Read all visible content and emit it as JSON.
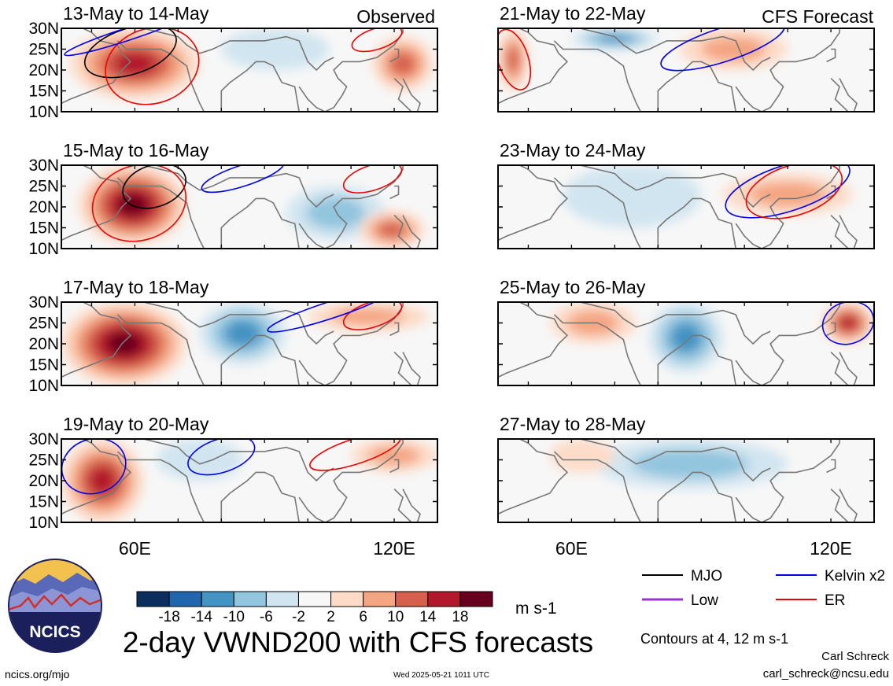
{
  "header": {
    "left_title": "Observed",
    "right_title": "CFS Forecast"
  },
  "chart_data": {
    "type": "heatmap",
    "variable": "VWND200",
    "panels": [
      {
        "column": "Observed",
        "title": "13-May to 14-May",
        "positive_areas": [
          {
            "lon_range": [
              45,
              75
            ],
            "lat_range": [
              13,
              30
            ],
            "peak": 14
          },
          {
            "lon_range": [
              115,
              129
            ],
            "lat_range": [
              15,
              28
            ],
            "peak": 10
          }
        ],
        "negative_areas": [
          {
            "lon_range": [
              80,
              105
            ],
            "lat_range": [
              20,
              30
            ],
            "peak": -4
          }
        ],
        "contours": [
          {
            "group": "MJO",
            "lon_range": [
              48,
              70
            ],
            "lat_range": [
              19,
              30
            ]
          },
          {
            "group": "ER",
            "lon_range": [
              53,
              75
            ],
            "lat_range": [
              12,
              30
            ]
          },
          {
            "group": "ER",
            "lon_range": [
              110,
              122
            ],
            "lat_range": [
              25,
              30
            ]
          },
          {
            "group": "Kelvin x2",
            "lon_range": [
              43,
              73
            ],
            "lat_range": [
              27,
              30
            ]
          }
        ]
      },
      {
        "column": "Observed",
        "title": "15-May to 16-May",
        "positive_areas": [
          {
            "lon_range": [
              47,
              72
            ],
            "lat_range": [
              11,
              30
            ],
            "peak": 18
          },
          {
            "lon_range": [
              112,
              127
            ],
            "lat_range": [
              10,
              19
            ],
            "peak": 10
          }
        ],
        "negative_areas": [
          {
            "lon_range": [
              95,
              118
            ],
            "lat_range": [
              12,
              25
            ],
            "peak": -6
          }
        ],
        "contours": [
          {
            "group": "MJO",
            "lon_range": [
              57,
              72
            ],
            "lat_range": [
              20,
              30
            ]
          },
          {
            "group": "ER",
            "lon_range": [
              50,
              72
            ],
            "lat_range": [
              12,
              30
            ]
          },
          {
            "group": "ER",
            "lon_range": [
              108,
              122
            ],
            "lat_range": [
              24,
              30
            ]
          },
          {
            "group": "Kelvin x2",
            "lon_range": [
              75,
              95
            ],
            "lat_range": [
              25,
              30
            ]
          }
        ]
      },
      {
        "column": "Observed",
        "title": "17-May to 18-May",
        "positive_areas": [
          {
            "lon_range": [
              43,
              72
            ],
            "lat_range": [
              10,
              30
            ],
            "peak": 18
          },
          {
            "lon_range": [
              100,
              128
            ],
            "lat_range": [
              23,
              30
            ],
            "peak": 6
          }
        ],
        "negative_areas": [
          {
            "lon_range": [
              75,
              95
            ],
            "lat_range": [
              15,
              30
            ],
            "peak": -10
          }
        ],
        "contours": [
          {
            "group": "ER",
            "lon_range": [
              108,
              122
            ],
            "lat_range": [
              24,
              30
            ]
          },
          {
            "group": "Kelvin x2",
            "lon_range": [
              90,
              120
            ],
            "lat_range": [
              26,
              30
            ]
          }
        ]
      },
      {
        "column": "Observed",
        "title": "19-May to 20-May",
        "positive_areas": [
          {
            "lon_range": [
              43,
              62
            ],
            "lat_range": [
              10,
              30
            ],
            "peak": 14
          },
          {
            "lon_range": [
              110,
              130
            ],
            "lat_range": [
              22,
              30
            ],
            "peak": 6
          }
        ],
        "negative_areas": [
          {
            "lon_range": [
              65,
              85
            ],
            "lat_range": [
              20,
              30
            ],
            "peak": -4
          }
        ],
        "contours": [
          {
            "group": "Kelvin x2",
            "lon_range": [
              43,
              58
            ],
            "lat_range": [
              17,
              30
            ]
          },
          {
            "group": "Kelvin x2",
            "lon_range": [
              72,
              88
            ],
            "lat_range": [
              22,
              30
            ]
          },
          {
            "group": "ER",
            "lon_range": [
              100,
              122
            ],
            "lat_range": [
              24,
              30
            ]
          }
        ]
      },
      {
        "column": "CFS Forecast",
        "title": "21-May to 22-May",
        "positive_areas": [
          {
            "lon_range": [
              43,
              50
            ],
            "lat_range": [
              15,
              30
            ],
            "peak": 10
          },
          {
            "lon_range": [
              85,
              110
            ],
            "lat_range": [
              20,
              30
            ],
            "peak": 6
          }
        ],
        "negative_areas": [
          {
            "lon_range": [
              60,
              80
            ],
            "lat_range": [
              25,
              30
            ],
            "peak": -10
          }
        ],
        "contours": [
          {
            "group": "ER",
            "lon_range": [
              43,
              50
            ],
            "lat_range": [
              15,
              30
            ]
          },
          {
            "group": "Kelvin x2",
            "lon_range": [
              80,
              110
            ],
            "lat_range": [
              22,
              30
            ]
          }
        ]
      },
      {
        "column": "CFS Forecast",
        "title": "23-May to 24-May",
        "positive_areas": [
          {
            "lon_range": [
              95,
              125
            ],
            "lat_range": [
              18,
              28
            ],
            "peak": 6
          }
        ],
        "negative_areas": [
          {
            "lon_range": [
              58,
              90
            ],
            "lat_range": [
              15,
              30
            ],
            "peak": -4
          }
        ],
        "contours": [
          {
            "group": "Kelvin x2",
            "lon_range": [
              95,
              125
            ],
            "lat_range": [
              19,
              30
            ]
          },
          {
            "group": "ER",
            "lon_range": [
              100,
              123
            ],
            "lat_range": [
              18,
              30
            ]
          }
        ]
      },
      {
        "column": "CFS Forecast",
        "title": "25-May to 26-May",
        "positive_areas": [
          {
            "lon_range": [
              55,
              75
            ],
            "lat_range": [
              20,
              30
            ],
            "peak": 6
          },
          {
            "lon_range": [
              118,
              130
            ],
            "lat_range": [
              20,
              30
            ],
            "peak": 14
          }
        ],
        "negative_areas": [
          {
            "lon_range": [
              78,
              95
            ],
            "lat_range": [
              13,
              30
            ],
            "peak": -10
          }
        ],
        "contours": [
          {
            "group": "Kelvin x2",
            "lon_range": [
              118,
              130
            ],
            "lat_range": [
              20,
              30
            ]
          }
        ]
      },
      {
        "column": "CFS Forecast",
        "title": "27-May to 28-May",
        "positive_areas": [
          {
            "lon_range": [
              55,
              70
            ],
            "lat_range": [
              22,
              30
            ],
            "peak": 2
          }
        ],
        "negative_areas": [
          {
            "lon_range": [
              65,
              110
            ],
            "lat_range": [
              18,
              30
            ],
            "peak": -6
          }
        ],
        "contours": []
      }
    ],
    "y_ticks": [
      "30N",
      "25N",
      "20N",
      "15N",
      "10N"
    ],
    "x_ticks": [
      {
        "lon": 60,
        "label": "60E"
      },
      {
        "lon": 120,
        "label": "120E"
      }
    ],
    "lon_range": [
      43,
      130
    ],
    "lat_range": [
      10,
      30
    ],
    "colorbar": {
      "labels": [
        "-18",
        "-14",
        "-10",
        "-6",
        "-2",
        "2",
        "6",
        "10",
        "14",
        "18"
      ],
      "colors": [
        "#0b2e5e",
        "#2166ac",
        "#4393c3",
        "#92c5de",
        "#d1e5f0",
        "#f7f7f7",
        "#fddbc7",
        "#f4a582",
        "#d6604d",
        "#b2182b",
        "#67001f"
      ],
      "units": "m s-1"
    },
    "legend": [
      {
        "label": "MJO",
        "color": "#000000"
      },
      {
        "label": "Kelvin x2",
        "color": "#0000ee"
      },
      {
        "label": "Low",
        "color": "#9933cc"
      },
      {
        "label": "ER",
        "color": "#ee0000"
      }
    ],
    "title": "2-day VWND200 with CFS forecasts",
    "contour_note": "Contours at 4, 12 m s-1"
  },
  "logo": {
    "text": "NCICS"
  },
  "footer": {
    "author": "Carl Schreck",
    "email": "carl_schreck@ncsu.edu",
    "site": "ncics.org/mjo",
    "generated": "Wed 2025-05-21 1011 UTC"
  }
}
